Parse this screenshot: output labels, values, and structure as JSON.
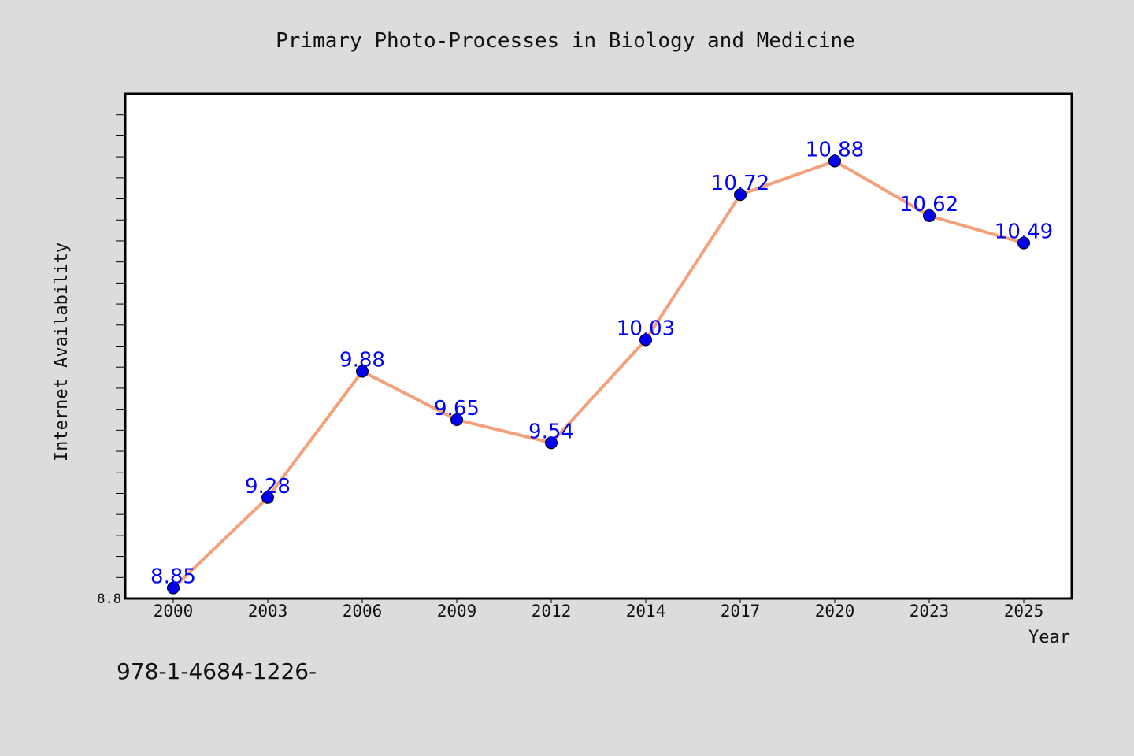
{
  "chart_data": {
    "type": "line",
    "title": "Primary Photo-Processes in Biology and Medicine",
    "xlabel": "Year",
    "ylabel": "Internet Availability",
    "categories": [
      "2000",
      "2003",
      "2006",
      "2009",
      "2012",
      "2014",
      "2017",
      "2020",
      "2023",
      "2025"
    ],
    "series": [
      {
        "values": [
          8.85,
          9.28,
          9.88,
          9.65,
          9.54,
          10.03,
          10.72,
          10.88,
          10.62,
          10.49
        ],
        "data_labels": [
          "8.85",
          "9.28",
          "9.88",
          "9.65",
          "9.54",
          "10.03",
          "10.72",
          "10.88",
          "10.62",
          "10.49"
        ]
      }
    ],
    "ylim": [
      8.8,
      11.2
    ],
    "ytick_labels": [
      "8.8"
    ],
    "grid": false,
    "legend": "none",
    "colors": {
      "line": "#f4a07a",
      "marker": "#0000ee",
      "data_label": "#0000ff",
      "background": "#dcdcdc",
      "plot_background": "#ffffff"
    }
  },
  "footnote": "978-1-4684-1226-"
}
